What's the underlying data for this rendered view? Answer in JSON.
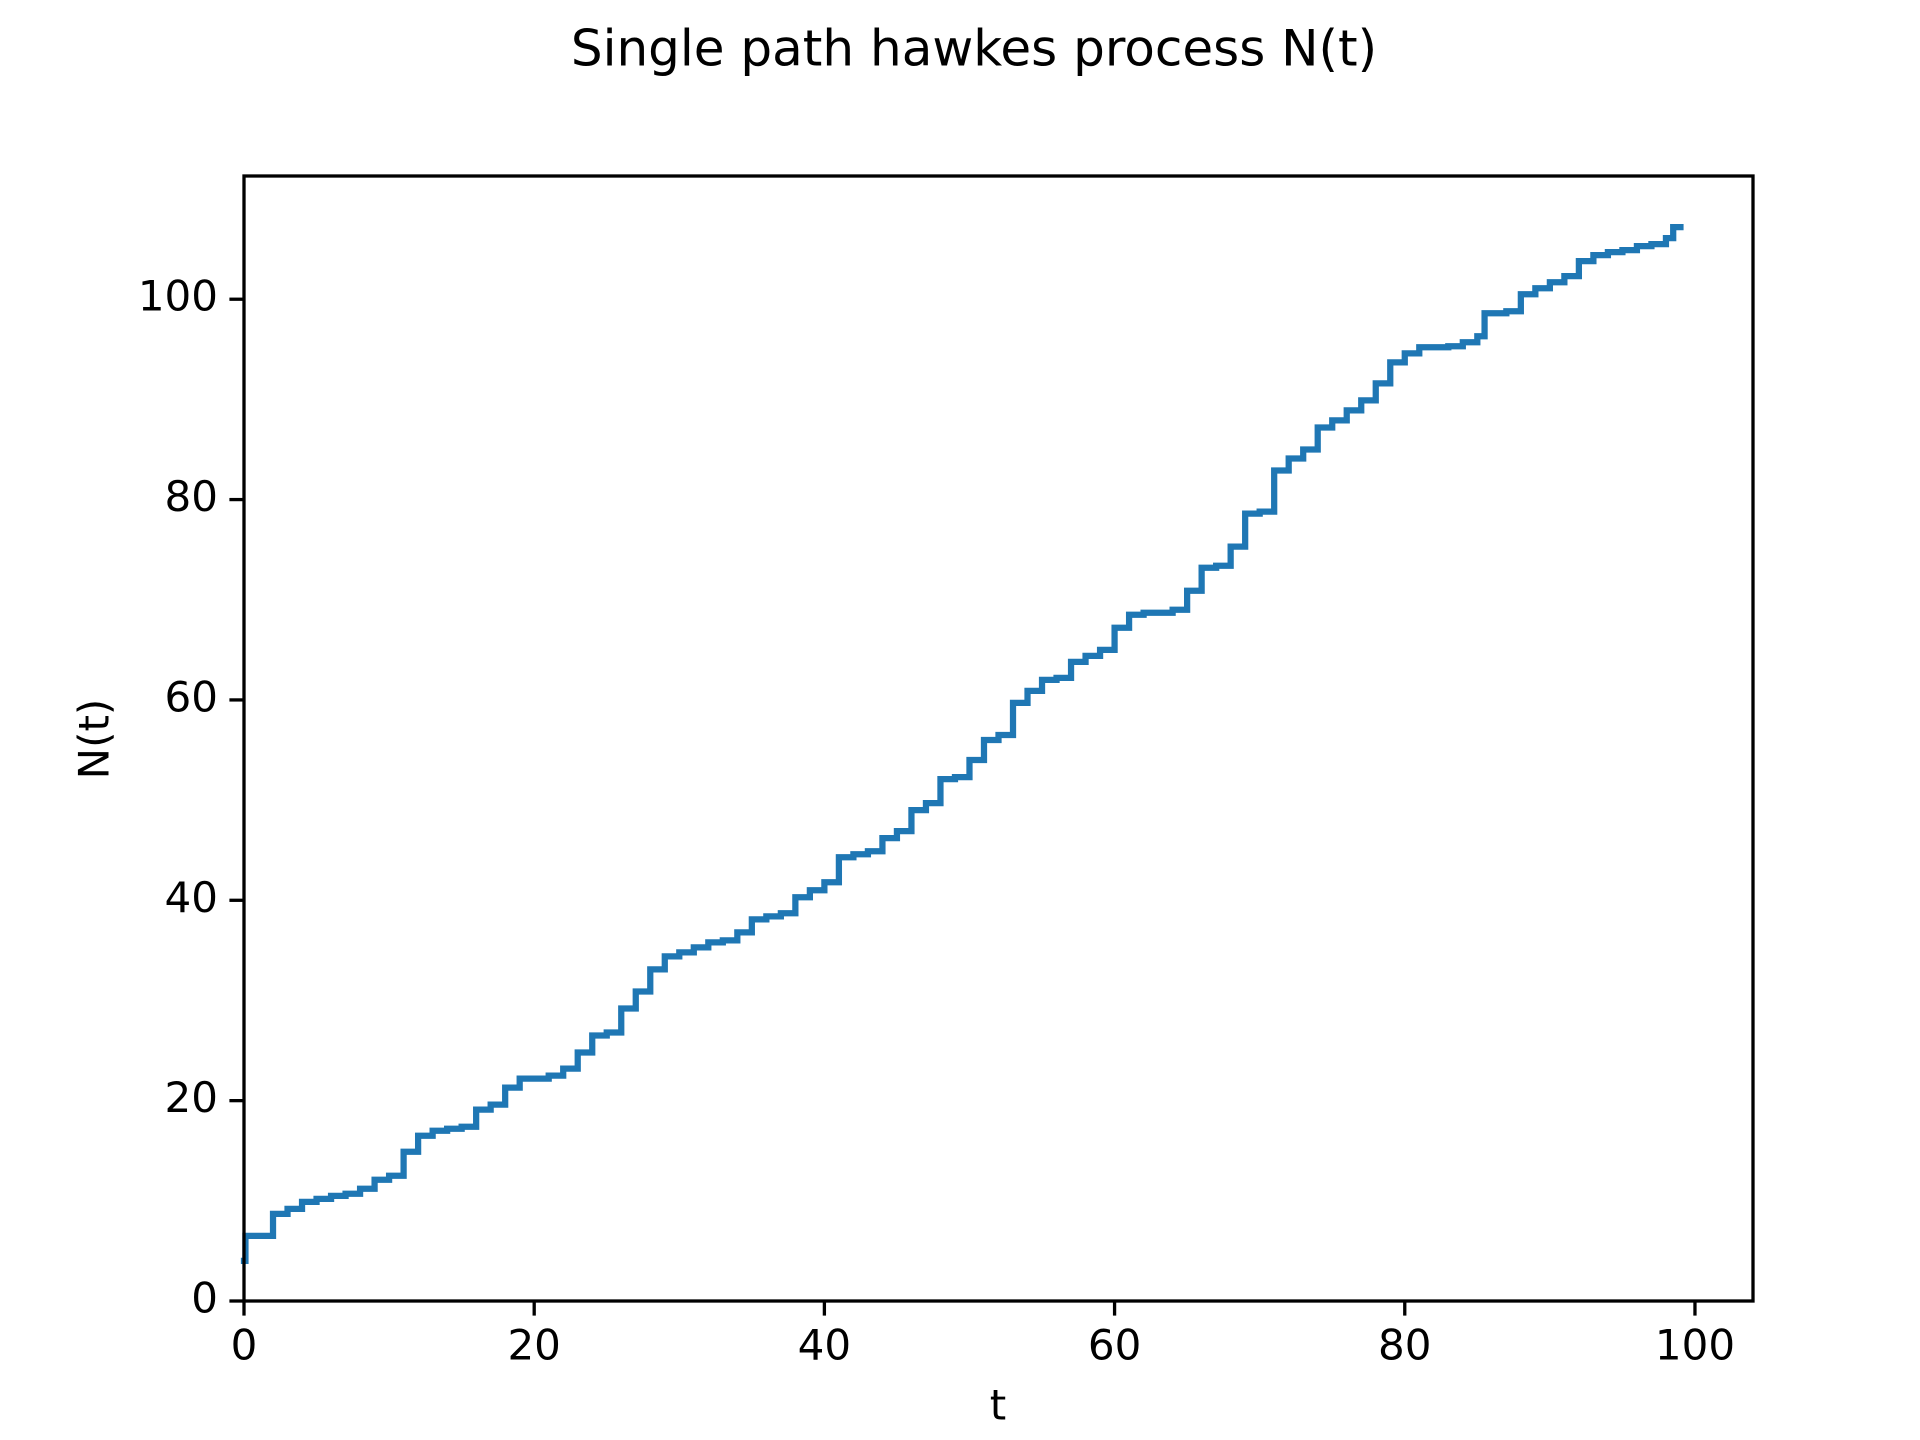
{
  "chart_data": {
    "type": "step",
    "title": "Single path hawkes process N(t)",
    "x_label": "t",
    "y_label": "N(t)",
    "color": "#1f77b4",
    "step": "post",
    "x": [
      0,
      0.1,
      2,
      3,
      4,
      5,
      6,
      7,
      8,
      9,
      10,
      11,
      12,
      13,
      14,
      15,
      16,
      17,
      18,
      19,
      21,
      22,
      23,
      24,
      25,
      26,
      27,
      28,
      29,
      30,
      31,
      32,
      33,
      34,
      35,
      36,
      37,
      38,
      39,
      40,
      41,
      42,
      43,
      44,
      45,
      46,
      47,
      48,
      49,
      50,
      51,
      52,
      53,
      54,
      55,
      56,
      57,
      58,
      59,
      60,
      61,
      62,
      64,
      65,
      66,
      67,
      68,
      69,
      70,
      71,
      72,
      73,
      74,
      75,
      76,
      77,
      78,
      79,
      80,
      81,
      83,
      84,
      85,
      85.5,
      87,
      88,
      89,
      90,
      91,
      92,
      93,
      94,
      95,
      96,
      97,
      98,
      98.5,
      99
    ],
    "values": [
      4,
      6.5,
      8.7,
      9.2,
      9.9,
      10.2,
      10.5,
      10.7,
      11.2,
      12.1,
      12.5,
      14.9,
      16.5,
      17.0,
      17.2,
      17.4,
      19.1,
      19.6,
      21.3,
      22.2,
      22.5,
      23.2,
      24.8,
      26.5,
      26.8,
      29.2,
      30.9,
      33.1,
      34.4,
      34.8,
      35.3,
      35.8,
      36.0,
      36.8,
      38.1,
      38.4,
      38.7,
      40.3,
      41.0,
      41.8,
      44.3,
      44.6,
      44.9,
      46.2,
      46.9,
      49.0,
      49.7,
      52.1,
      52.3,
      54.0,
      56.0,
      56.5,
      59.7,
      60.9,
      62.0,
      62.2,
      63.8,
      64.4,
      65.0,
      67.2,
      68.5,
      68.7,
      69.0,
      70.9,
      73.2,
      73.4,
      75.3,
      78.6,
      78.8,
      82.9,
      84.1,
      85.0,
      87.2,
      87.9,
      88.9,
      89.9,
      91.6,
      93.7,
      94.6,
      95.2,
      95.3,
      95.7,
      96.3,
      98.6,
      98.8,
      100.5,
      101.1,
      101.7,
      102.3,
      103.8,
      104.4,
      104.7,
      104.9,
      105.3,
      105.5,
      106.1,
      107.2,
      107.2
    ],
    "xlim": [
      0,
      104
    ],
    "xticks": [
      0,
      20,
      40,
      60,
      80,
      100
    ],
    "ylim": [
      0,
      112.3
    ],
    "yticks": [
      0,
      20,
      40,
      60,
      80,
      100
    ]
  }
}
